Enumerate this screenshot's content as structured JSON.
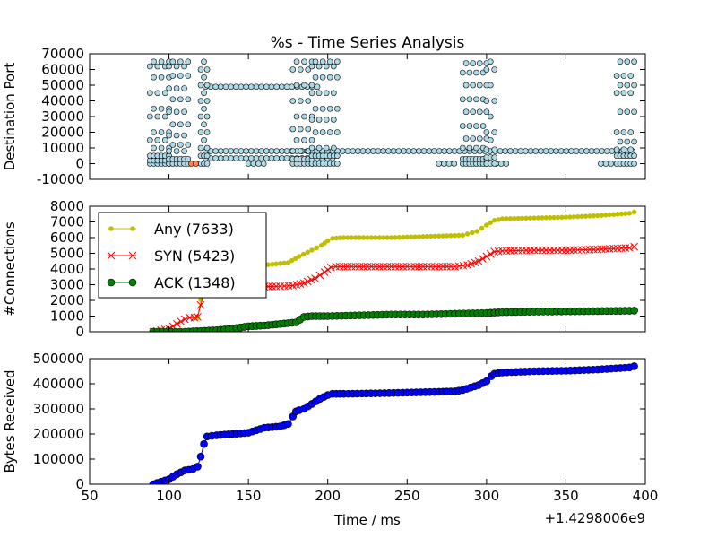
{
  "figure": {
    "title": "%s - Time Series Analysis",
    "xlabel": "Time / ms",
    "x_offset_label": "+1.4298006e9"
  },
  "chart_data": [
    {
      "type": "scatter",
      "ylabel": "Destination Port",
      "xlim": [
        50,
        400
      ],
      "ylim": [
        -10000,
        70000
      ],
      "yticks": [
        -10000,
        0,
        10000,
        20000,
        30000,
        40000,
        50000,
        60000,
        70000
      ],
      "marker_color": "#add8e6",
      "highlight_color": "#ff7f50",
      "clusters": [
        {
          "x_range": [
            88,
            100
          ],
          "y_values": [
            0,
            2000,
            5000,
            10000,
            15000,
            20000,
            30000,
            35000,
            45000,
            55000,
            62000,
            65000
          ]
        },
        {
          "x_range": [
            100,
            112
          ],
          "y_values": [
            0,
            3000,
            8000,
            12000,
            18000,
            25000,
            33000,
            41000,
            48000,
            56000,
            62000,
            65000
          ]
        },
        {
          "x_range": [
            120,
            124
          ],
          "y_values": [
            0,
            5000,
            10000,
            15000,
            20000,
            25000,
            30000,
            35000,
            40000,
            45000,
            50000,
            55000,
            60000,
            65000
          ]
        },
        {
          "x_range": [
            178,
            190
          ],
          "y_values": [
            0,
            3000,
            8000,
            15000,
            22000,
            30000,
            40000,
            50000,
            60000,
            65000
          ]
        },
        {
          "x_range": [
            190,
            206
          ],
          "y_values": [
            0,
            5000,
            10000,
            20000,
            28000,
            35000,
            45000,
            55000,
            62000,
            65000
          ]
        },
        {
          "x_range": [
            285,
            300
          ],
          "y_values": [
            0,
            3000,
            10000,
            16000,
            24000,
            33000,
            41000,
            50000,
            58000,
            64000
          ]
        },
        {
          "x_range": [
            300,
            305
          ],
          "y_values": [
            0,
            4000,
            9000,
            15000,
            20000,
            30000,
            40000,
            50000,
            60000,
            65000
          ]
        },
        {
          "x_range": [
            382,
            393
          ],
          "y_values": [
            0,
            5000,
            9000,
            14000,
            20000,
            33000,
            45000,
            50000,
            56000,
            65000
          ]
        }
      ],
      "bands": [
        {
          "y": 49000,
          "x_from": 123,
          "x_to": 195
        },
        {
          "y": 8000,
          "x_from": 123,
          "x_to": 393
        },
        {
          "y": 3500,
          "x_from": 123,
          "x_to": 206
        },
        {
          "y": 0,
          "x_from": 150,
          "x_to": 160
        },
        {
          "y": 0,
          "x_from": 270,
          "x_to": 280
        },
        {
          "y": 0,
          "x_from": 306,
          "x_to": 315
        },
        {
          "y": 0,
          "x_from": 372,
          "x_to": 380
        }
      ],
      "highlights": [
        {
          "x": 114,
          "y": 0
        },
        {
          "x": 117,
          "y": 0
        }
      ]
    },
    {
      "type": "line",
      "ylabel": "#Connections",
      "xlim": [
        50,
        400
      ],
      "ylim": [
        0,
        8000
      ],
      "yticks": [
        0,
        1000,
        2000,
        3000,
        4000,
        5000,
        6000,
        7000,
        8000
      ],
      "legend": "upper-left",
      "series": [
        {
          "name": "Any (7633)",
          "color": "#bfbf00",
          "marker": "dot",
          "x": [
            118,
            122,
            124,
            128,
            135,
            145,
            155,
            165,
            175,
            182,
            190,
            196,
            200,
            203,
            210,
            225,
            240,
            255,
            270,
            285,
            294,
            300,
            305,
            310,
            330,
            350,
            370,
            390,
            393
          ],
          "y": [
            900,
            3200,
            3300,
            3600,
            3900,
            4100,
            4200,
            4300,
            4400,
            4800,
            5200,
            5500,
            5800,
            5950,
            6000,
            6000,
            6000,
            6050,
            6100,
            6150,
            6400,
            6800,
            7100,
            7200,
            7250,
            7300,
            7400,
            7550,
            7633
          ]
        },
        {
          "name": "SYN (5423)",
          "color": "#ff0000",
          "marker": "x",
          "x": [
            90,
            100,
            105,
            110,
            113,
            116,
            118,
            120,
            122,
            124,
            130,
            140,
            150,
            160,
            170,
            178,
            185,
            192,
            198,
            202,
            205,
            220,
            240,
            260,
            280,
            288,
            295,
            300,
            305,
            310,
            330,
            350,
            370,
            390,
            393
          ],
          "y": [
            0,
            200,
            500,
            800,
            900,
            900,
            950,
            1700,
            2500,
            2800,
            2850,
            2850,
            2850,
            2880,
            2900,
            2950,
            3100,
            3400,
            3800,
            4100,
            4150,
            4150,
            4150,
            4150,
            4150,
            4250,
            4500,
            4800,
            5100,
            5150,
            5200,
            5200,
            5250,
            5350,
            5423
          ]
        },
        {
          "name": "ACK (1348)",
          "color": "#008000",
          "marker": "circle",
          "x": [
            90,
            110,
            120,
            130,
            140,
            150,
            160,
            170,
            180,
            185,
            190,
            200,
            220,
            240,
            260,
            280,
            300,
            310,
            330,
            350,
            370,
            390,
            393
          ],
          "y": [
            0,
            0,
            50,
            100,
            200,
            350,
            400,
            500,
            600,
            950,
            1000,
            1000,
            1050,
            1100,
            1100,
            1150,
            1200,
            1250,
            1280,
            1300,
            1320,
            1340,
            1348
          ]
        }
      ]
    },
    {
      "type": "line",
      "ylabel": "Bytes Received",
      "xlim": [
        50,
        400
      ],
      "ylim": [
        0,
        500000
      ],
      "yticks": [
        0,
        100000,
        200000,
        300000,
        400000,
        500000
      ],
      "xticks": [
        50,
        100,
        150,
        200,
        250,
        300,
        350,
        400
      ],
      "series": [
        {
          "color": "#0000ff",
          "marker": "circle",
          "x": [
            90,
            95,
            100,
            105,
            110,
            115,
            118,
            120,
            122,
            124,
            130,
            140,
            150,
            155,
            160,
            170,
            175,
            178,
            180,
            182,
            185,
            190,
            195,
            200,
            203,
            210,
            230,
            250,
            270,
            280,
            285,
            290,
            295,
            300,
            303,
            305,
            310,
            330,
            350,
            370,
            390,
            393
          ],
          "y": [
            0,
            10000,
            20000,
            40000,
            55000,
            60000,
            70000,
            110000,
            160000,
            190000,
            195000,
            200000,
            205000,
            215000,
            225000,
            230000,
            240000,
            270000,
            290000,
            295000,
            300000,
            320000,
            340000,
            355000,
            360000,
            360000,
            362000,
            365000,
            368000,
            370000,
            375000,
            385000,
            395000,
            410000,
            430000,
            440000,
            445000,
            450000,
            452000,
            457000,
            465000,
            470000
          ]
        }
      ]
    }
  ]
}
